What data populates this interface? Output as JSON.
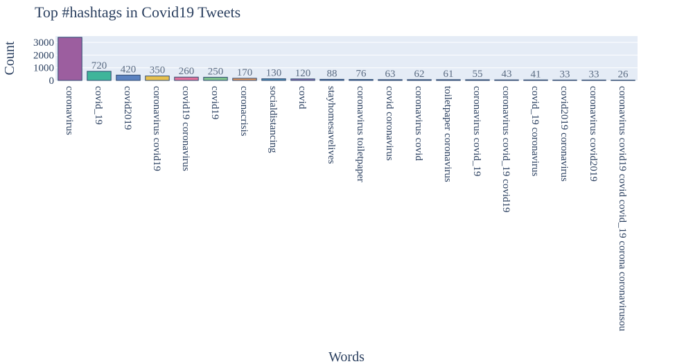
{
  "chart_data": {
    "type": "bar",
    "title": "Top #hashtags in Covid19 Tweets",
    "xlabel": "Words",
    "ylabel": "Count",
    "ylim": [
      0,
      3500
    ],
    "yticks": [
      0,
      1000,
      2000,
      3000
    ],
    "grid": true,
    "legend": "none",
    "categories": [
      "coronavirus",
      "covid_19",
      "covid2019",
      "coronavirus covid19",
      "covid19 coronavirus",
      "covid19",
      "coronacrisis",
      "socialdistancing",
      "covid",
      "stayhomesavelives",
      "coronavirus toiletpaper",
      "covid coronavirus",
      "coronavirus covid",
      "toiletpaper coronavirus",
      "coronavirus covid_19",
      "coronavirus covid_19 covid19",
      "covid_19 coronavirus",
      "covid2019 coronavirus",
      "coronavirus covid2019",
      "coronavirus covid19 covid covid_19 corona coronavirusou"
    ],
    "values": [
      3400,
      720,
      420,
      350,
      260,
      250,
      170,
      130,
      120,
      88,
      76,
      63,
      62,
      61,
      55,
      43,
      41,
      33,
      33,
      26
    ],
    "data_labels": [
      "",
      "720",
      "420",
      "350",
      "260",
      "250",
      "170",
      "130",
      "120",
      "88",
      "76",
      "63",
      "62",
      "61",
      "55",
      "43",
      "41",
      "33",
      "33",
      "26"
    ],
    "colors": [
      "#9c5e9f",
      "#3fb59a",
      "#5b82c0",
      "#e8c14e",
      "#e0709a",
      "#7fc28c",
      "#e4965a",
      "#4a8bb5",
      "#8a6bb0",
      "#4e7ab8",
      "#4e7ab8",
      "#4e7ab8",
      "#4e7ab8",
      "#4e7ab8",
      "#4e7ab8",
      "#4e7ab8",
      "#4e7ab8",
      "#4e7ab8",
      "#4e7ab8",
      "#4e7ab8"
    ],
    "plot_bg": "#e5ecf6"
  }
}
